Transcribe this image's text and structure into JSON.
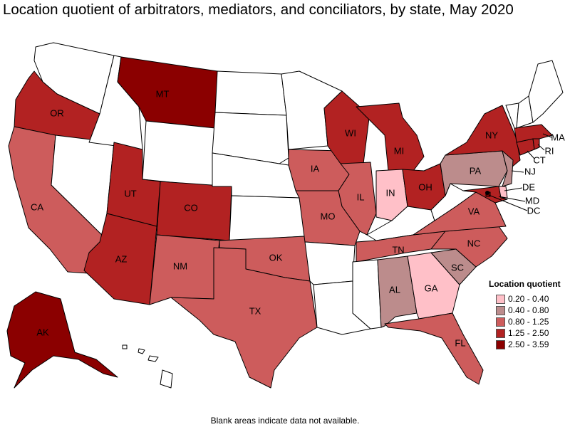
{
  "title": "Location quotient of arbitrators, mediators, and conciliators, by state, May 2020",
  "footnote": "Blank areas indicate data not available.",
  "legend": {
    "title": "Location quotient",
    "items": [
      {
        "label": "0.20 - 0.40",
        "color": "#ffc0c8"
      },
      {
        "label": "0.40 - 0.80",
        "color": "#bc8c8c"
      },
      {
        "label": "0.80 - 1.25",
        "color": "#cd5c5c"
      },
      {
        "label": "1.25 - 2.50",
        "color": "#b22222"
      },
      {
        "label": "2.50 - 3.59",
        "color": "#8b0000"
      }
    ]
  },
  "states": {
    "WA": {
      "label": "",
      "class": "none"
    },
    "OR": {
      "label": "OR",
      "class": 3
    },
    "CA": {
      "label": "CA",
      "class": 2
    },
    "NV": {
      "label": "",
      "class": "none"
    },
    "ID": {
      "label": "",
      "class": "none"
    },
    "MT": {
      "label": "MT",
      "class": 4
    },
    "WY": {
      "label": "",
      "class": "none"
    },
    "UT": {
      "label": "UT",
      "class": 3
    },
    "AZ": {
      "label": "AZ",
      "class": 3
    },
    "CO": {
      "label": "CO",
      "class": 3
    },
    "NM": {
      "label": "NM",
      "class": 2
    },
    "ND": {
      "label": "",
      "class": "none"
    },
    "SD": {
      "label": "",
      "class": "none"
    },
    "NE": {
      "label": "",
      "class": "none"
    },
    "KS": {
      "label": "",
      "class": "none"
    },
    "OK": {
      "label": "OK",
      "class": 2
    },
    "TX": {
      "label": "TX",
      "class": 2
    },
    "MN": {
      "label": "",
      "class": "none"
    },
    "IA": {
      "label": "IA",
      "class": 2
    },
    "MO": {
      "label": "MO",
      "class": 2
    },
    "AR": {
      "label": "",
      "class": "none"
    },
    "LA": {
      "label": "",
      "class": "none"
    },
    "WI": {
      "label": "WI",
      "class": 3
    },
    "IL": {
      "label": "IL",
      "class": 2
    },
    "MI": {
      "label": "MI",
      "class": 3
    },
    "IN": {
      "label": "IN",
      "class": 0
    },
    "OH": {
      "label": "OH",
      "class": 3
    },
    "KY": {
      "label": "",
      "class": "none"
    },
    "TN": {
      "label": "TN",
      "class": 2
    },
    "MS": {
      "label": "",
      "class": "none"
    },
    "AL": {
      "label": "AL",
      "class": 1
    },
    "GA": {
      "label": "GA",
      "class": 0
    },
    "FL": {
      "label": "FL",
      "class": 2
    },
    "SC": {
      "label": "SC",
      "class": 1
    },
    "NC": {
      "label": "NC",
      "class": 2
    },
    "VA": {
      "label": "VA",
      "class": 2
    },
    "WV": {
      "label": "",
      "class": "none"
    },
    "PA": {
      "label": "PA",
      "class": 1
    },
    "NY": {
      "label": "NY",
      "class": 3
    },
    "ME": {
      "label": "",
      "class": "none"
    },
    "NH": {
      "label": "",
      "class": "none"
    },
    "VT": {
      "label": "",
      "class": "none"
    },
    "MA": {
      "label": "MA",
      "class": 3
    },
    "RI": {
      "label": "RI",
      "class": 3
    },
    "CT": {
      "label": "CT",
      "class": 3
    },
    "NJ": {
      "label": "NJ",
      "class": 1
    },
    "DE": {
      "label": "DE",
      "class": 0
    },
    "MD": {
      "label": "MD",
      "class": 3
    },
    "DC": {
      "label": "DC",
      "class": 4
    },
    "AK": {
      "label": "AK",
      "class": 4
    },
    "HI": {
      "label": "",
      "class": "none"
    }
  }
}
